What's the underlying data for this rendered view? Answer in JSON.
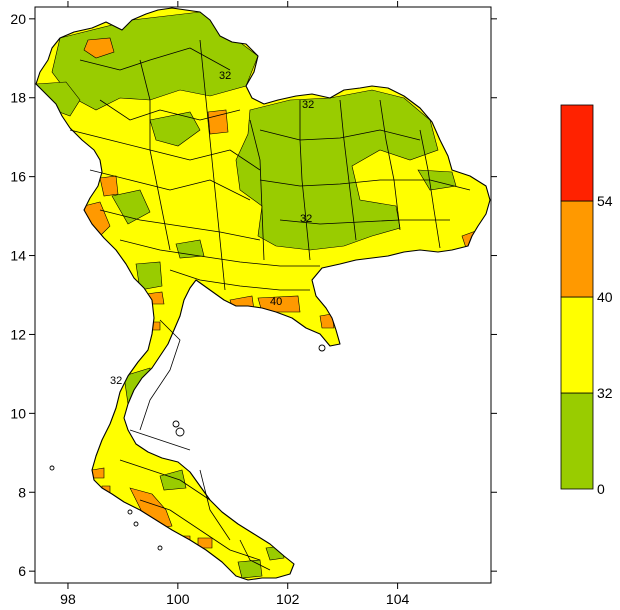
{
  "axes": {
    "x_ticks": [
      {
        "value": 98,
        "label": "98"
      },
      {
        "value": 100,
        "label": "100"
      },
      {
        "value": 102,
        "label": "102"
      },
      {
        "value": 104,
        "label": "104"
      }
    ],
    "y_ticks": [
      {
        "value": 6,
        "label": "6"
      },
      {
        "value": 8,
        "label": "8"
      },
      {
        "value": 10,
        "label": "10"
      },
      {
        "value": 12,
        "label": "12"
      },
      {
        "value": 14,
        "label": "14"
      },
      {
        "value": 16,
        "label": "16"
      },
      {
        "value": 18,
        "label": "18"
      },
      {
        "value": 20,
        "label": "20"
      }
    ],
    "xlim": [
      97.4,
      105.7
    ],
    "ylim": [
      5.7,
      20.3
    ]
  },
  "legend": {
    "bins": [
      {
        "from": 0,
        "to": 32,
        "color": "#99cc00"
      },
      {
        "from": 32,
        "to": 40,
        "color": "#ffff00"
      },
      {
        "from": 40,
        "to": 54,
        "color": "#ff9900"
      },
      {
        "from": 54,
        "to": null,
        "color": "#ff2200"
      }
    ],
    "labels": [
      "0",
      "32",
      "40",
      "54"
    ]
  },
  "contour_labels": [
    "32",
    "32",
    "32",
    "40",
    "32"
  ],
  "colors": {
    "low": "#99cc00",
    "mid": "#ffff00",
    "high": "#ff9900",
    "extreme": "#ff2200"
  }
}
